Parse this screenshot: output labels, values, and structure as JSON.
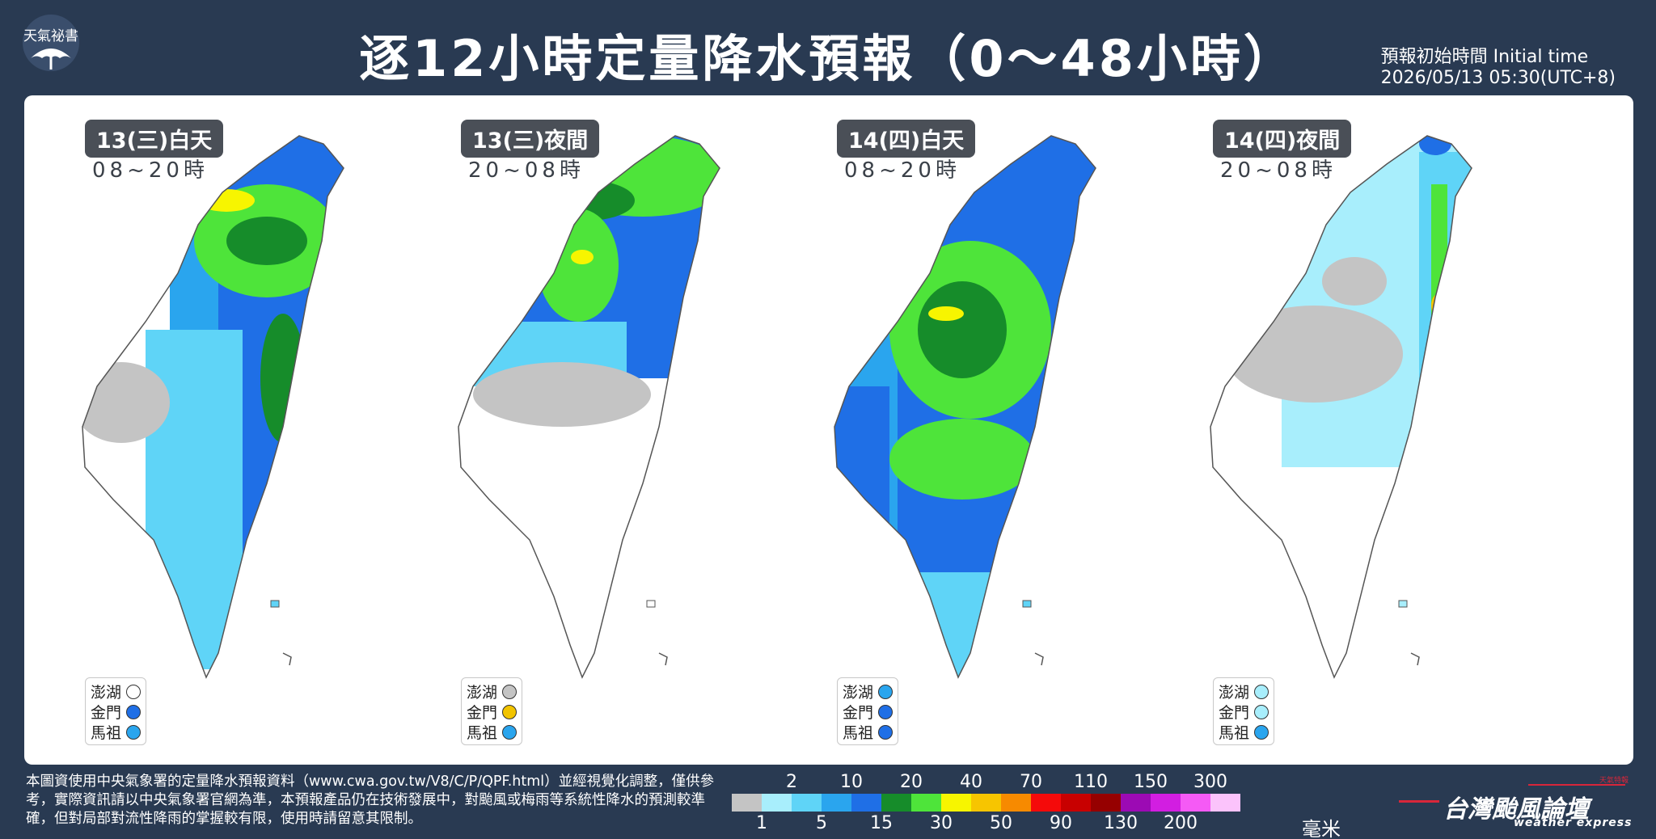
{
  "logo_left": {
    "text": "天氣祕書",
    "icon": "umbrella-icon"
  },
  "title": "逐12小時定量降水預報（0～48小時）",
  "initial_time": {
    "label": "預報初始時間 Initial time",
    "value": "2026/05/13   05:30(UTC+8)"
  },
  "panels": [
    {
      "tag": "13(三)白天",
      "hours": "08~20時",
      "islands": [
        {
          "name": "澎湖",
          "color": "#ffffff"
        },
        {
          "name": "金門",
          "color": "#1f6fe6"
        },
        {
          "name": "馬祖",
          "color": "#2aa5ee"
        }
      ]
    },
    {
      "tag": "13(三)夜間",
      "hours": "20~08時",
      "islands": [
        {
          "name": "澎湖",
          "color": "#c4c4c4"
        },
        {
          "name": "金門",
          "color": "#f2c400"
        },
        {
          "name": "馬祖",
          "color": "#2aa5ee"
        }
      ]
    },
    {
      "tag": "14(四)白天",
      "hours": "08~20時",
      "islands": [
        {
          "name": "澎湖",
          "color": "#2aa5ee"
        },
        {
          "name": "金門",
          "color": "#1f6fe6"
        },
        {
          "name": "馬祖",
          "color": "#1f6fe6"
        }
      ]
    },
    {
      "tag": "14(四)夜間",
      "hours": "20~08時",
      "islands": [
        {
          "name": "澎湖",
          "color": "#a8eefc"
        },
        {
          "name": "金門",
          "color": "#a8eefc"
        },
        {
          "name": "馬祖",
          "color": "#2aa5ee"
        }
      ]
    }
  ],
  "note": "本圖資使用中央氣象署的定量降水預報資料（www.cwa.gov.tw/V8/C/P/QPF.html）並經視覺化調整，僅供參考，實際資訊請以中央氣象署官網為準，本預報產品仍在技術發展中，對颱風或梅雨等系統性降水的預測較準確，但對局部對流性降雨的掌握較有限，使用時請留意其限制。",
  "legend": {
    "colors": [
      "#c4c4c4",
      "#a8eefc",
      "#5fd4f7",
      "#2aa5ee",
      "#1f6fe6",
      "#168c2a",
      "#4ee43a",
      "#f7f500",
      "#f7c500",
      "#f78a00",
      "#f50a0a",
      "#c80000",
      "#960000",
      "#9c0ab4",
      "#d21ee1",
      "#f55af5",
      "#fbc3fb"
    ],
    "upper_labels": [
      "2",
      "10",
      "20",
      "40",
      "70",
      "110",
      "150",
      "300"
    ],
    "lower_labels": [
      "1",
      "5",
      "15",
      "30",
      "50",
      "90",
      "130",
      "200"
    ],
    "unit": "毫米"
  },
  "logo_right": {
    "name": "台灣颱風論壇",
    "sub": "weather express",
    "badge": "天氣特報"
  }
}
